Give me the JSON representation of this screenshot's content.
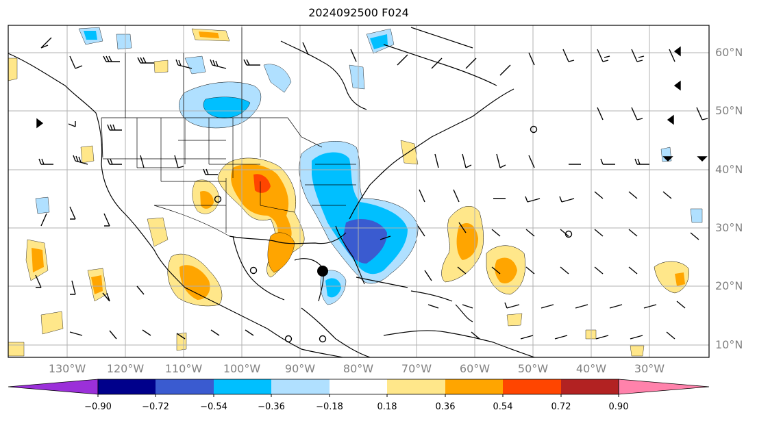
{
  "title": "2024092500 F024",
  "map": {
    "lat_labels": [
      "60°N",
      "50°N",
      "40°N",
      "30°N",
      "20°N",
      "10°N"
    ],
    "lon_labels": [
      "130°W",
      "120°W",
      "110°W",
      "100°W",
      "90°W",
      "80°W",
      "70°W",
      "60°W",
      "50°W",
      "40°W",
      "30°W"
    ]
  },
  "colorbar": {
    "ticks": [
      "−0.90",
      "−0.72",
      "−0.54",
      "−0.36",
      "−0.18",
      "0.18",
      "0.36",
      "0.54",
      "0.72",
      "0.90"
    ],
    "colors": [
      "#9b30d9",
      "#00008b",
      "#3a5bd0",
      "#00bfff",
      "#b0e0ff",
      "#ffffff",
      "#ffe78a",
      "#ffa500",
      "#ff4500",
      "#b22222",
      "#ff82ab"
    ]
  },
  "markers": {
    "storm_center": "filled-circle",
    "small_circles": "open-circle"
  }
}
